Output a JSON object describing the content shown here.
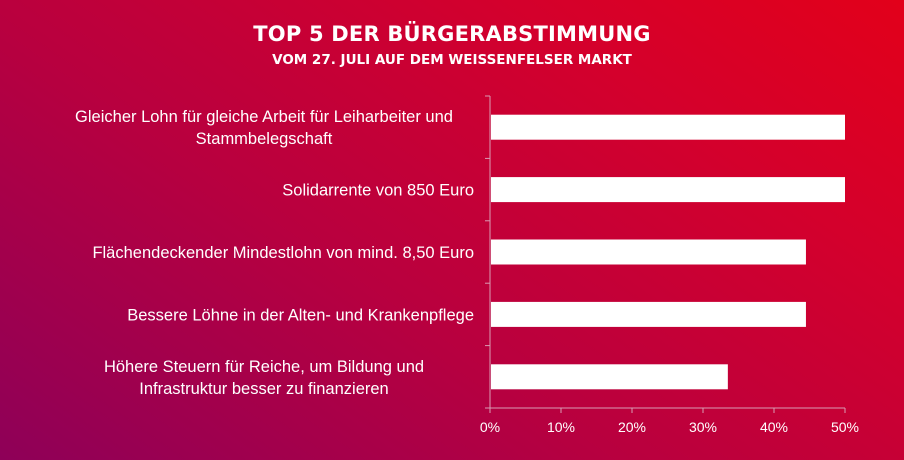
{
  "colors": {
    "bar": "#ffffff",
    "axis": "#d99cb3",
    "background_start": "#8e0058",
    "background_end": "#e2001a"
  },
  "chart_data": {
    "type": "bar",
    "orientation": "horizontal",
    "title": "TOP 5 DER BÜRGERABSTIMMUNG",
    "subtitle": "VOM 27. JULI AUF DEM WEISSENFELSER MARKT",
    "categories": [
      [
        "Gleicher Lohn für gleiche Arbeit für Leiharbeiter und",
        "Stammbelegschaft"
      ],
      [
        "Solidarrente von 850 Euro"
      ],
      [
        "Flächendeckender Mindestlohn von mind. 8,50 Euro"
      ],
      [
        "Bessere Löhne in der Alten- und Krankenpflege"
      ],
      [
        "Höhere Steuern für Reiche, um Bildung und",
        "Infrastruktur besser zu finanzieren"
      ]
    ],
    "values": [
      50,
      50,
      44.5,
      44.5,
      33.5
    ],
    "unit": "%",
    "xlim": [
      0,
      50
    ],
    "ticks": [
      0,
      10,
      20,
      30,
      40,
      50
    ],
    "tick_labels": [
      "0%",
      "10%",
      "20%",
      "30%",
      "40%",
      "50%"
    ],
    "grid": false,
    "legend": "none"
  }
}
